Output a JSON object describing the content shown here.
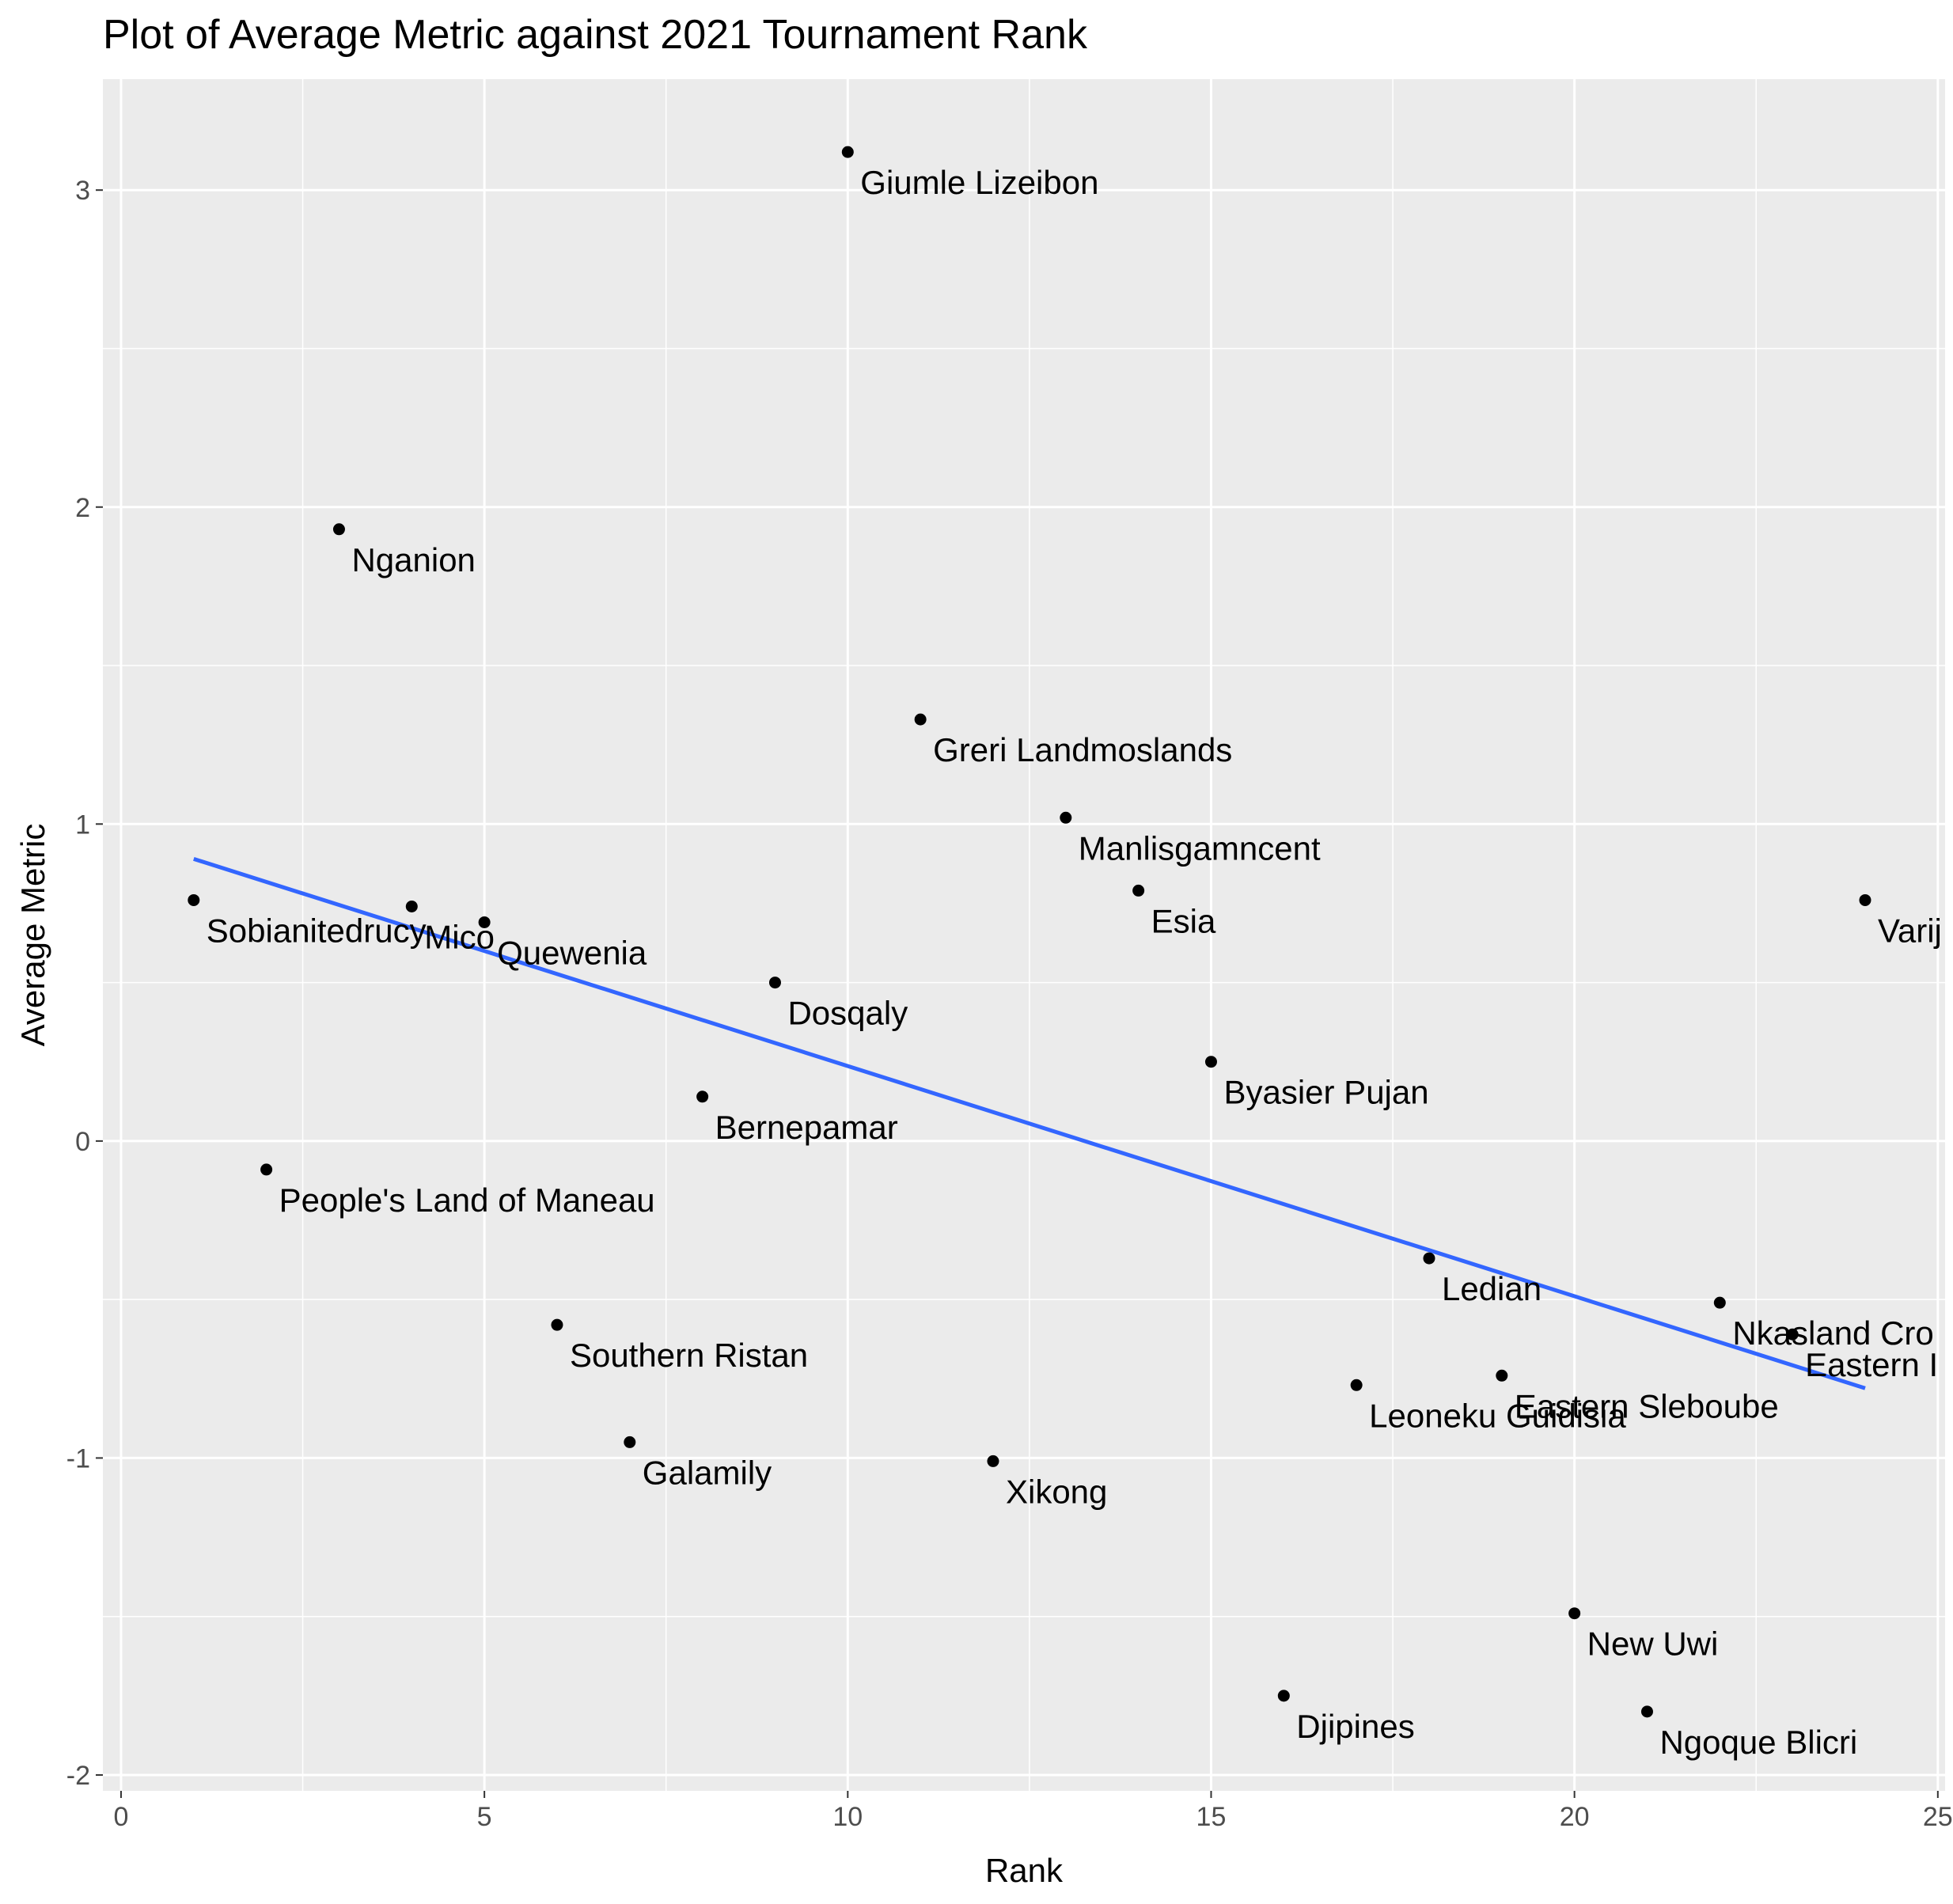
{
  "chart_data": {
    "type": "scatter",
    "title": "Plot of Average Metric against 2021 Tournament Rank",
    "xlabel": "Rank",
    "ylabel": "Average Metric",
    "xlim": [
      -0.25,
      25.1
    ],
    "ylim": [
      -2.05,
      3.35
    ],
    "xticks": [
      0,
      5,
      10,
      15,
      20,
      25
    ],
    "yticks": [
      -2,
      -1,
      0,
      1,
      2,
      3
    ],
    "grid": true,
    "background": "#ebebeb",
    "grid_color": "#ffffff",
    "point_color": "#000000",
    "trend_color": "#3366ff",
    "points": [
      {
        "x": 1,
        "y": 0.76,
        "label": "Sobianitedrucy"
      },
      {
        "x": 2,
        "y": -0.09,
        "label": "People's Land of Maneau"
      },
      {
        "x": 3,
        "y": 1.93,
        "label": "Nganion"
      },
      {
        "x": 4,
        "y": 0.74,
        "label": "Mico"
      },
      {
        "x": 5,
        "y": 0.69,
        "label": "Quewenia"
      },
      {
        "x": 6,
        "y": -0.58,
        "label": "Southern Ristan"
      },
      {
        "x": 7,
        "y": -0.95,
        "label": "Galamily"
      },
      {
        "x": 8,
        "y": 0.14,
        "label": "Bernepamar"
      },
      {
        "x": 9,
        "y": 0.5,
        "label": "Dosqaly"
      },
      {
        "x": 10,
        "y": 3.12,
        "label": "Giumle Lizeibon"
      },
      {
        "x": 11,
        "y": 1.33,
        "label": "Greri Landmoslands"
      },
      {
        "x": 12,
        "y": -1.01,
        "label": "Xikong"
      },
      {
        "x": 13,
        "y": 1.02,
        "label": "Manlisgamncent"
      },
      {
        "x": 14,
        "y": 0.79,
        "label": "Esia"
      },
      {
        "x": 15,
        "y": 0.25,
        "label": "Byasier Pujan"
      },
      {
        "x": 16,
        "y": -1.75,
        "label": "Djipines"
      },
      {
        "x": 17,
        "y": -0.77,
        "label": "Leoneku Guidisia"
      },
      {
        "x": 18,
        "y": -0.37,
        "label": "Ledian"
      },
      {
        "x": 19,
        "y": -0.74,
        "label": "Eastern Sleboube"
      },
      {
        "x": 20,
        "y": -1.49,
        "label": "New Uwi"
      },
      {
        "x": 21,
        "y": -1.8,
        "label": "Ngoque Blicri"
      },
      {
        "x": 22,
        "y": -0.51,
        "label": "Nkasland Cro"
      },
      {
        "x": 23,
        "y": -0.61,
        "label": "Eastern I"
      },
      {
        "x": 24,
        "y": 0.76,
        "label": "Varij"
      }
    ],
    "trend_line": {
      "x": [
        1,
        24
      ],
      "y": [
        0.89,
        -0.78
      ]
    }
  }
}
